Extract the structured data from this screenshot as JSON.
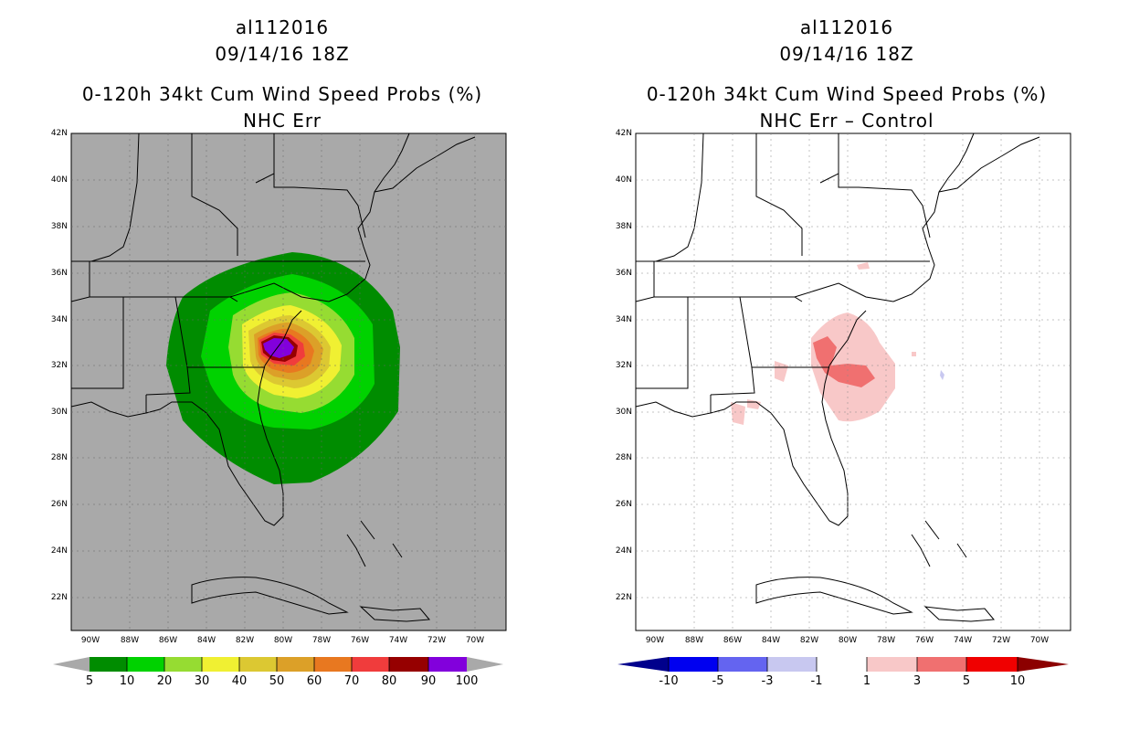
{
  "colors": {
    "land_bg_left": "#a9a9a9",
    "land_bg_right": "#ffffff",
    "prob_scale": [
      "#008c00",
      "#00d200",
      "#96dc32",
      "#f0f032",
      "#dcc832",
      "#dca028",
      "#e87820",
      "#f03c3c",
      "#960000",
      "#8200dc"
    ],
    "diff_scale": [
      "#00008c",
      "#0000f0",
      "#6464f0",
      "#c8c8f0",
      "#ffffff",
      "#f8c8c8",
      "#f07070",
      "#f00000",
      "#8c0000"
    ]
  },
  "left": {
    "storm_id": "al112016",
    "datetime": "09/14/16 18Z",
    "title": "0-120h 34kt Cum Wind Speed Probs (%)",
    "subtitle": "NHC Err",
    "colorbar_labels": [
      "5",
      "10",
      "20",
      "30",
      "40",
      "50",
      "60",
      "70",
      "80",
      "90",
      "100"
    ]
  },
  "right": {
    "storm_id": "al112016",
    "datetime": "09/14/16 18Z",
    "title": "0-120h 34kt Cum Wind Speed Probs (%)",
    "subtitle": "NHC Err – Control",
    "colorbar_labels": [
      "-10",
      "-5",
      "-3",
      "-1",
      "1",
      "3",
      "5",
      "10"
    ]
  },
  "lat_labels": [
    "42N",
    "40N",
    "38N",
    "36N",
    "34N",
    "32N",
    "30N",
    "28N",
    "26N",
    "24N",
    "22N"
  ],
  "lon_labels": [
    "90W",
    "88W",
    "86W",
    "84W",
    "82W",
    "80W",
    "78W",
    "76W",
    "74W",
    "72W",
    "70W"
  ]
}
